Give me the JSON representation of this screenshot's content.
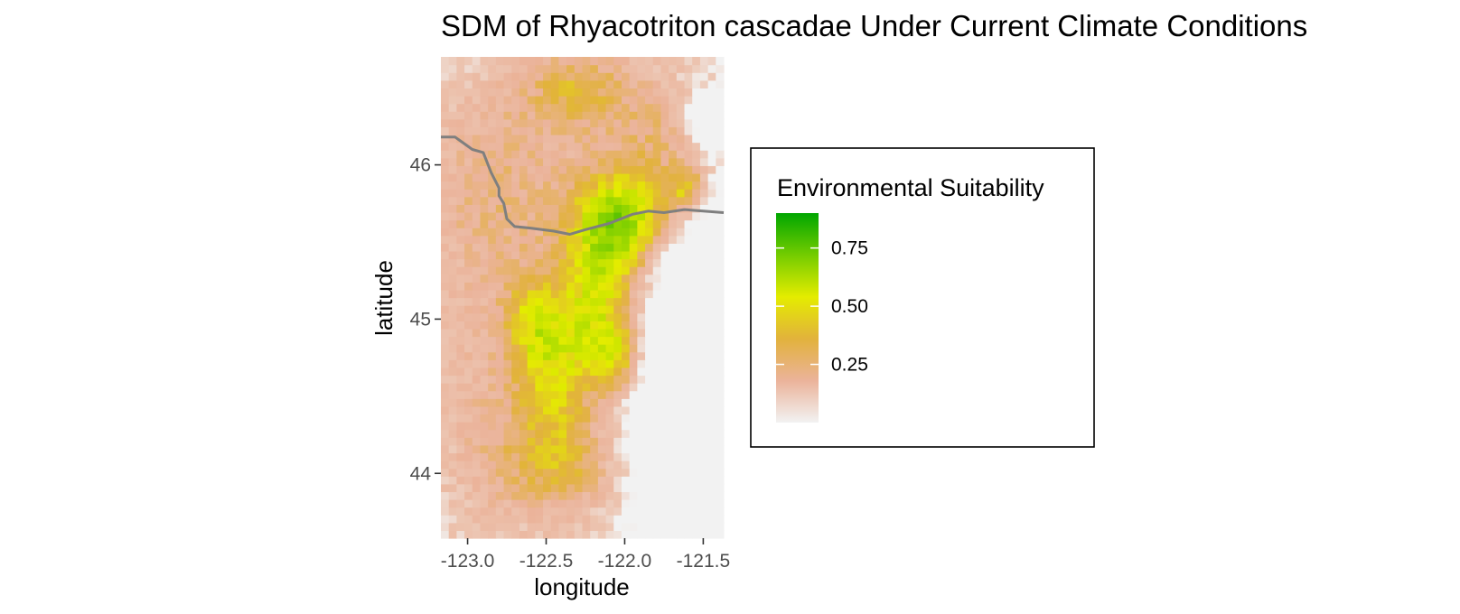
{
  "chart_data": {
    "type": "heatmap",
    "title": "SDM of Rhyacotriton cascadae Under Current Climate Conditions",
    "xlabel": "longitude",
    "ylabel": "latitude",
    "xlim": [
      -123.17,
      -121.37
    ],
    "ylim": [
      43.58,
      46.7
    ],
    "x_ticks": [
      {
        "value": -123.0,
        "label": "-123.0"
      },
      {
        "value": -122.5,
        "label": "-122.5"
      },
      {
        "value": -122.0,
        "label": "-122.0"
      },
      {
        "value": -121.5,
        "label": "-121.5"
      }
    ],
    "y_ticks": [
      {
        "value": 44,
        "label": "44"
      },
      {
        "value": 45,
        "label": "45"
      },
      {
        "value": 46,
        "label": "46"
      }
    ],
    "grid": false,
    "legend": {
      "title": "Environmental Suitability",
      "placement": "right",
      "range": [
        0,
        0.9
      ],
      "breaks": [
        {
          "value": 0.25,
          "label": "0.25"
        },
        {
          "value": 0.5,
          "label": "0.5"
        },
        {
          "value": 0.75,
          "label": "0.75"
        }
      ],
      "break_labels": [
        "0.25",
        "0.50",
        "0.75"
      ],
      "colors": [
        "#f2f2f2",
        "#ebb39a",
        "#e2b23c",
        "#e4ec00",
        "#74cc00",
        "#00a600"
      ]
    },
    "grid_resolution": [
      36,
      62
    ],
    "suitability_regions": [
      {
        "lon": -122.0,
        "lat": 45.65,
        "slon": 0.22,
        "slat": 0.22,
        "peak": 0.5
      },
      {
        "lon": -121.6,
        "lat": 45.85,
        "slon": 0.08,
        "slat": 0.1,
        "peak": 0.3
      },
      {
        "lon": -122.15,
        "lat": 45.15,
        "slon": 0.18,
        "slat": 0.35,
        "peak": 0.4
      },
      {
        "lon": -122.05,
        "lat": 44.75,
        "slon": 0.12,
        "slat": 0.15,
        "peak": 0.3
      },
      {
        "lon": -122.45,
        "lat": 44.7,
        "slon": 0.18,
        "slat": 0.35,
        "peak": 0.35
      },
      {
        "lon": -122.6,
        "lat": 45.0,
        "slon": 0.12,
        "slat": 0.2,
        "peak": 0.2
      },
      {
        "lon": -122.4,
        "lat": 44.05,
        "slon": 0.3,
        "slat": 0.25,
        "peak": 0.25
      },
      {
        "lon": -122.8,
        "lat": 45.9,
        "slon": 0.4,
        "slat": 0.5,
        "peak": 0.18
      },
      {
        "lon": -122.9,
        "lat": 44.5,
        "slon": 0.25,
        "slat": 0.7,
        "peak": 0.12
      },
      {
        "lon": -121.75,
        "lat": 46.15,
        "slon": 0.25,
        "slat": 0.3,
        "peak": 0.22
      },
      {
        "lon": -122.3,
        "lat": 46.5,
        "slon": 0.25,
        "slat": 0.2,
        "peak": 0.25
      }
    ],
    "low_regions": [
      {
        "lon": -121.45,
        "lat": 44.3,
        "slon": 0.3,
        "slat": 0.9,
        "depth": 0.6
      },
      {
        "lon": -121.45,
        "lat": 46.3,
        "slon": 0.1,
        "slat": 0.12,
        "depth": 0.4
      },
      {
        "lon": -121.7,
        "lat": 45.38,
        "slon": 0.04,
        "slat": 0.04,
        "depth": 0.6
      }
    ],
    "boundary_line": {
      "label": "state border",
      "color": "#7f7f7f",
      "lon": [
        -123.17,
        -123.08,
        -122.97,
        -122.9,
        -122.85,
        -122.8,
        -122.8,
        -122.77,
        -122.75,
        -122.7,
        -122.6,
        -122.45,
        -122.35,
        -122.25,
        -122.1,
        -121.95,
        -121.85,
        -121.75,
        -121.62,
        -121.5,
        -121.37
      ],
      "lat": [
        46.18,
        46.18,
        46.1,
        46.08,
        45.95,
        45.85,
        45.8,
        45.75,
        45.65,
        45.6,
        45.59,
        45.57,
        45.55,
        45.58,
        45.62,
        45.68,
        45.7,
        45.69,
        45.71,
        45.7,
        45.69
      ]
    }
  }
}
